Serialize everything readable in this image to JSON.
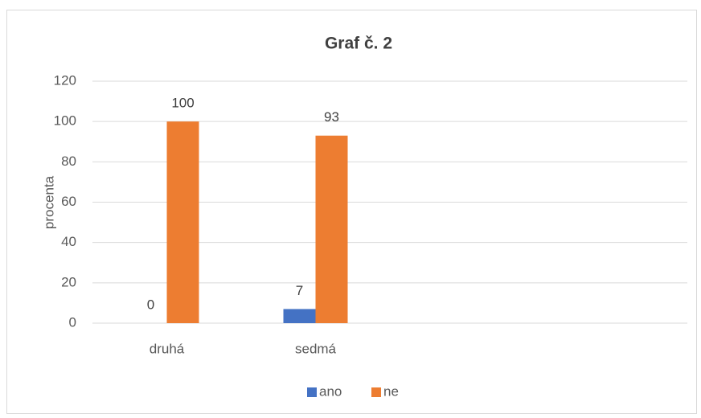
{
  "chart_data": {
    "type": "bar",
    "title": "Graf č. 2",
    "y_label": "procenta",
    "categories": [
      "druhá",
      "sedmá",
      null,
      null
    ],
    "series": [
      {
        "name": "ano",
        "color": "#4472c4",
        "values": [
          0,
          7,
          null,
          null
        ]
      },
      {
        "name": "ne",
        "color": "#ed7d31",
        "values": [
          100,
          93,
          null,
          null
        ]
      }
    ],
    "ylim": [
      0,
      120
    ],
    "yticks": [
      0,
      20,
      40,
      60,
      80,
      100,
      120
    ],
    "grid": true,
    "legend": "bottom"
  }
}
